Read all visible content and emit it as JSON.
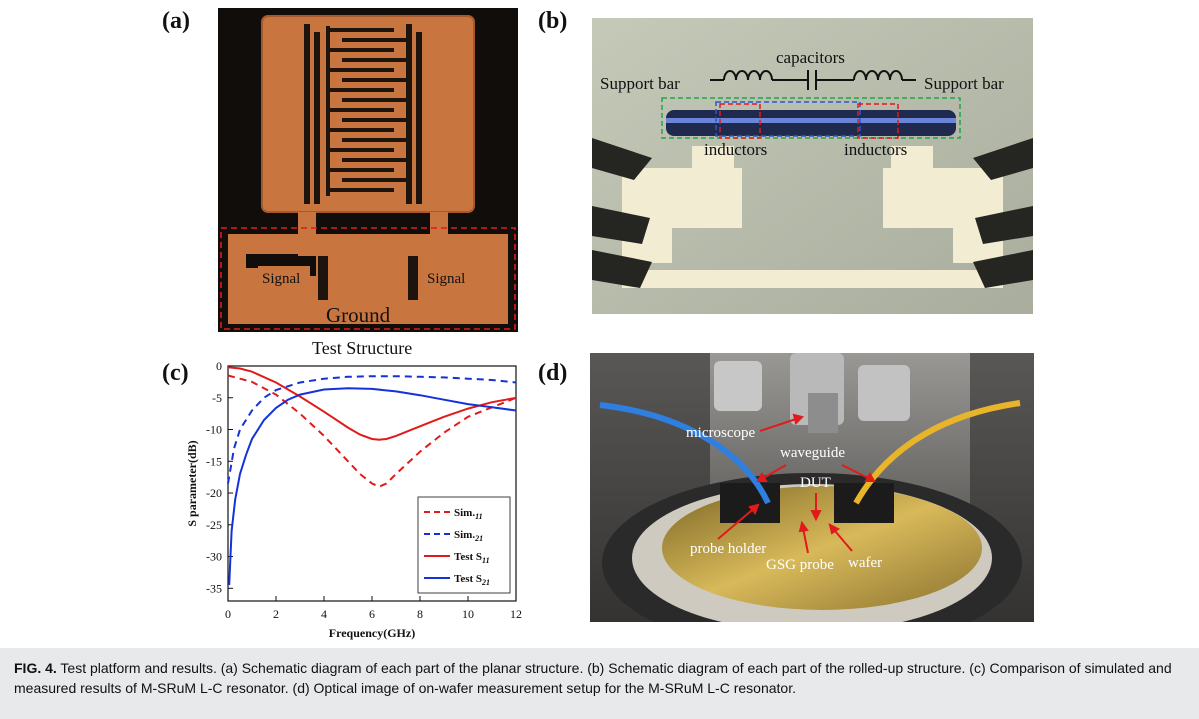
{
  "panels": {
    "a": {
      "label": "(a)",
      "signal_left": "Signal",
      "signal_right": "Signal",
      "ground": "Ground",
      "caption": "Test Structure"
    },
    "b": {
      "label": "(b)",
      "support_left": "Support bar",
      "support_right": "Support bar",
      "capacitors": "capacitors",
      "inductors_left": "inductors",
      "inductors_right": "inductors"
    },
    "c": {
      "label": "(c)"
    },
    "d": {
      "label": "(d)",
      "microscope": "microscope",
      "waveguide": "waveguide",
      "dut": "DUT",
      "probe_holder": "probe holder",
      "gsg_probe": "GSG probe",
      "wafer": "wafer"
    }
  },
  "chart_data": {
    "type": "line",
    "xlabel": "Frequency(GHz)",
    "ylabel": "S parameter(dB)",
    "xlim": [
      0,
      12
    ],
    "ylim": [
      -37,
      0
    ],
    "xticks": [
      0,
      2,
      4,
      6,
      8,
      10,
      12
    ],
    "yticks": [
      0,
      -5,
      -10,
      -15,
      -20,
      -25,
      -30,
      -35
    ],
    "legend_position": "bottom-right",
    "series": [
      {
        "name": "Sim.S11",
        "name_base": "Sim.",
        "name_sub": "11",
        "color": "#e11b1b",
        "dash": true,
        "x": [
          0,
          1,
          2,
          3,
          4,
          5,
          5.5,
          6,
          6.3,
          6.6,
          7,
          8,
          9,
          10,
          11,
          12
        ],
        "y": [
          -1.5,
          -2.5,
          -4.5,
          -7.5,
          -11,
          -15,
          -17,
          -18.5,
          -19,
          -18.5,
          -17,
          -13.5,
          -10.5,
          -8,
          -6.5,
          -5
        ]
      },
      {
        "name": "Sim.S21",
        "name_base": "Sim.",
        "name_sub": "21",
        "color": "#1432d8",
        "dash": true,
        "x": [
          0,
          0.25,
          0.5,
          1,
          1.5,
          2,
          3,
          4,
          5,
          6,
          7,
          8,
          9,
          10,
          11,
          12
        ],
        "y": [
          -18.5,
          -13,
          -10,
          -7,
          -5,
          -3.8,
          -2.6,
          -2,
          -1.7,
          -1.6,
          -1.6,
          -1.7,
          -1.8,
          -2,
          -2.2,
          -2.6
        ]
      },
      {
        "name": "Test S11",
        "name_base": "Test S",
        "name_sub": "11",
        "color": "#e11b1b",
        "dash": false,
        "x": [
          0,
          0.5,
          1,
          2,
          3,
          4,
          5,
          5.5,
          6,
          6.3,
          6.6,
          7,
          8,
          9,
          10,
          11,
          12
        ],
        "y": [
          -0.2,
          -0.4,
          -0.9,
          -2.6,
          -4.8,
          -7.2,
          -9.7,
          -10.8,
          -11.5,
          -11.6,
          -11.5,
          -11,
          -9.5,
          -8,
          -6.7,
          -5.7,
          -5
        ]
      },
      {
        "name": "Test S21",
        "name_base": "Test S",
        "name_sub": "21",
        "color": "#1432d8",
        "dash": false,
        "x": [
          0.05,
          0.15,
          0.3,
          0.5,
          0.75,
          1,
          1.5,
          2,
          2.5,
          3,
          4,
          5,
          6,
          7,
          8,
          9,
          10,
          11,
          12
        ],
        "y": [
          -34.5,
          -26,
          -21,
          -17,
          -14,
          -11.5,
          -8.5,
          -6.6,
          -5.3,
          -4.5,
          -3.7,
          -3.5,
          -3.6,
          -4,
          -4.6,
          -5.3,
          -6,
          -6.5,
          -7
        ]
      }
    ]
  },
  "caption": {
    "label": "FIG. 4.",
    "text": " Test platform and results. (a) Schematic diagram of each part of the planar structure. (b) Schematic diagram of each part of the rolled-up structure. (c) Comparison of simulated and measured results of M-SRuM L-C resonator. (d) Optical image of on-wafer measurement setup for the M-SRuM L-C resonator."
  }
}
